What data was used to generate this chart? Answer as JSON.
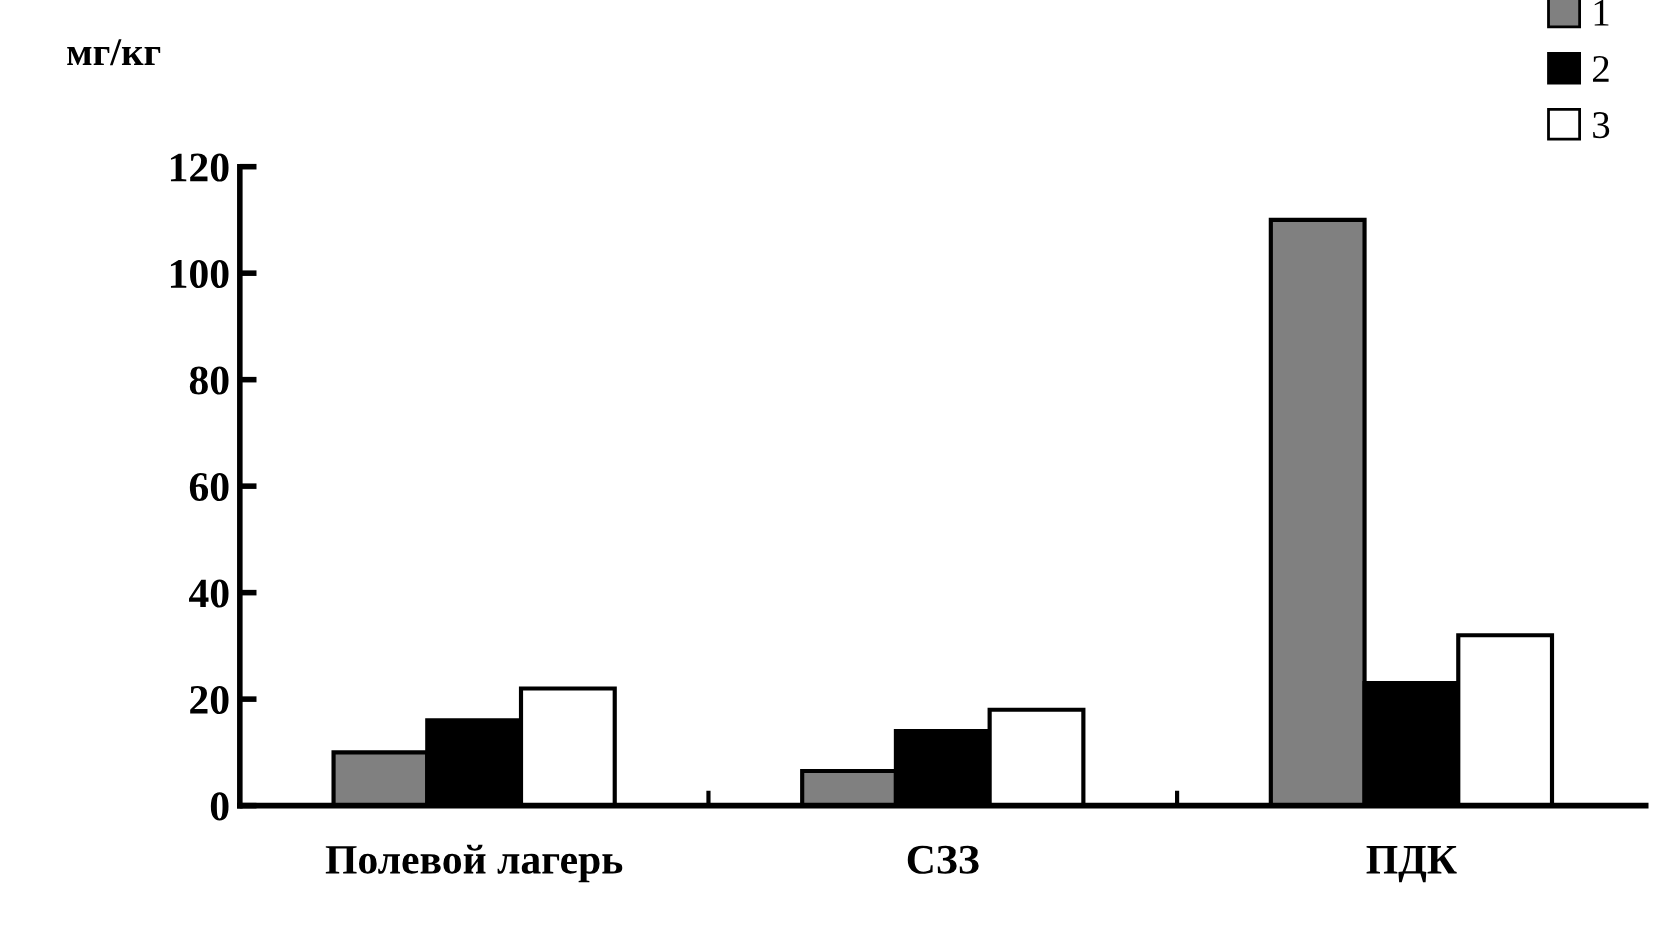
{
  "chart_data": {
    "type": "bar",
    "ylabel": "мг/кг",
    "categories": [
      "Полевой лагерь",
      "СЗЗ",
      "ПДК"
    ],
    "series": [
      {
        "name": "1",
        "color": "#808080",
        "values": [
          10,
          6.5,
          110
        ]
      },
      {
        "name": "2",
        "color": "#000000",
        "values": [
          16,
          14,
          23
        ]
      },
      {
        "name": "3",
        "color": "#ffffff",
        "values": [
          22,
          18,
          32
        ]
      }
    ],
    "ylim": [
      0,
      120
    ],
    "yticks": [
      0,
      20,
      40,
      60,
      80,
      100,
      120
    ],
    "grid": false,
    "legend": "top right"
  }
}
